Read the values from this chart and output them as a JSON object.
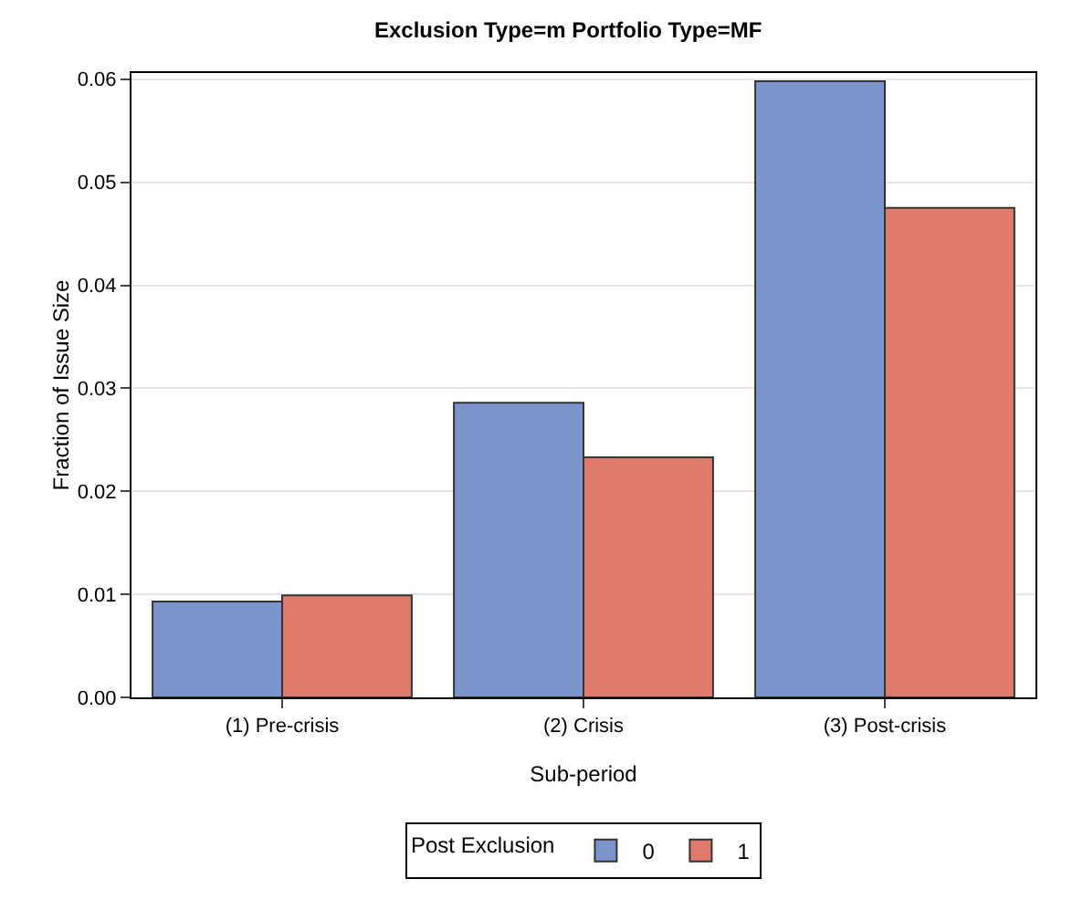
{
  "chart_data": {
    "type": "bar",
    "title": "Exclusion Type=m Portfolio Type=MF",
    "xlabel": "Sub-period",
    "ylabel": "Fraction of Issue Size",
    "legend_title": "Post Exclusion",
    "categories": [
      "(1) Pre-crisis",
      "(2) Crisis",
      "(3) Post-crisis"
    ],
    "series": [
      {
        "name": "0",
        "color": "#7b94cc",
        "values": [
          0.0093,
          0.0286,
          0.0598
        ]
      },
      {
        "name": "1",
        "color": "#e07b6c",
        "values": [
          0.0099,
          0.0233,
          0.0475
        ]
      }
    ],
    "ylim": [
      0,
      0.0606
    ],
    "yticks": [
      {
        "value": 0,
        "label": "0.00"
      },
      {
        "value": 0.01,
        "label": "0.01"
      },
      {
        "value": 0.02,
        "label": "0.02"
      },
      {
        "value": 0.03,
        "label": "0.03"
      },
      {
        "value": 0.04,
        "label": "0.04"
      },
      {
        "value": 0.05,
        "label": "0.05"
      },
      {
        "value": 0.06,
        "label": "0.06"
      }
    ],
    "grid": "y",
    "legend": "bottom"
  }
}
